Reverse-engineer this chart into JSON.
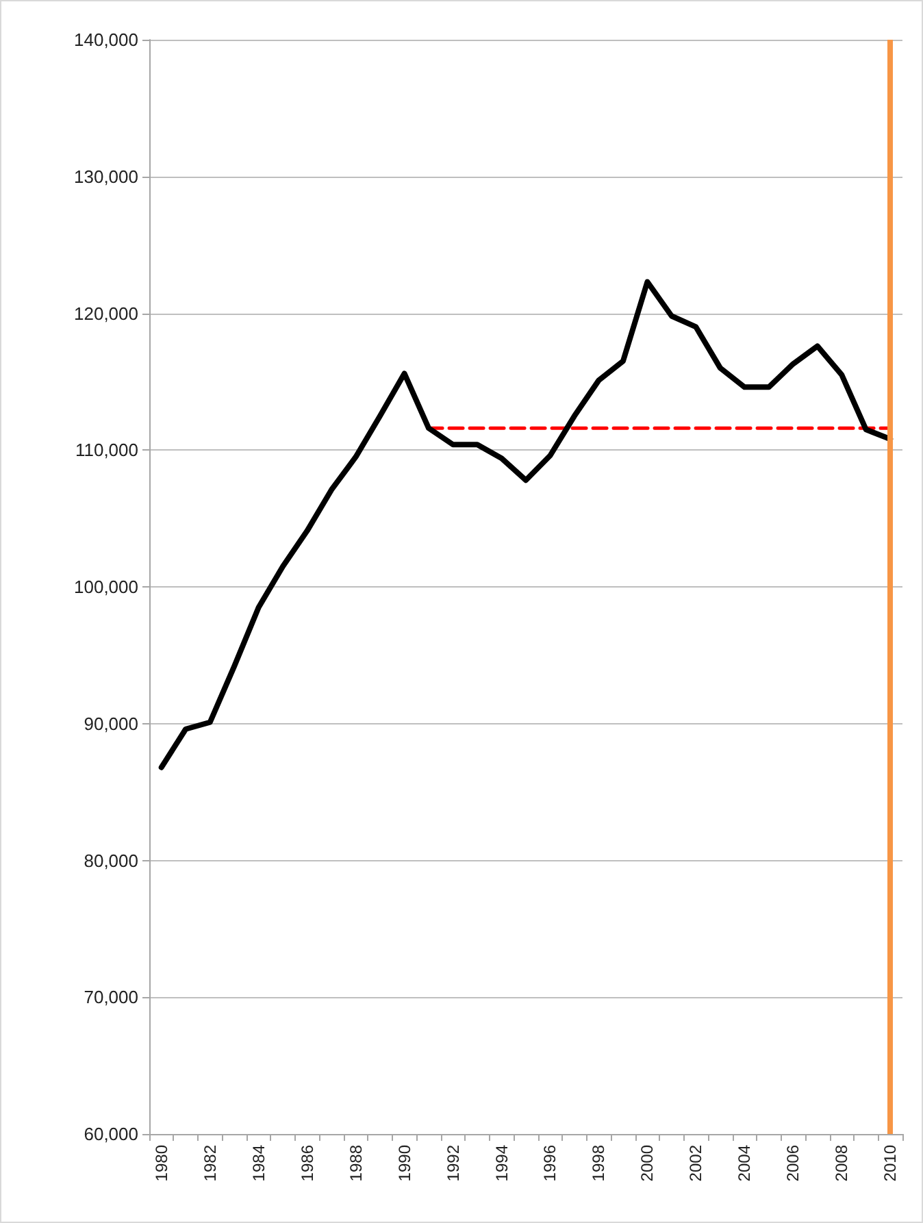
{
  "chart_data": {
    "type": "line",
    "categories": [
      "1980",
      null,
      "1982",
      null,
      "1984",
      null,
      "1986",
      null,
      "1988",
      null,
      "1990",
      null,
      "1992",
      null,
      "1994",
      null,
      "1996",
      null,
      "1998",
      null,
      "2000",
      null,
      "2002",
      null,
      "2004",
      null,
      "2006",
      null,
      "2008",
      null,
      "2010"
    ],
    "series": [
      {
        "color": "#000000",
        "line_style": "solid",
        "values": [
          86800,
          89600,
          90100,
          94200,
          98500,
          101500,
          104100,
          107100,
          109500,
          112500,
          115600,
          111600,
          110400,
          110400,
          109400,
          107800,
          109600,
          112500,
          115100,
          116500,
          122300,
          119800,
          119000,
          116000,
          114600,
          114600,
          116300,
          117600,
          115500,
          111500,
          110800
        ]
      },
      {
        "color": "#ff0000",
        "line_style": "dashed",
        "values": [
          null,
          null,
          null,
          null,
          null,
          null,
          null,
          null,
          null,
          null,
          null,
          111600,
          111600,
          111600,
          111600,
          111600,
          111600,
          111600,
          111600,
          111600,
          111600,
          111600,
          111600,
          111600,
          111600,
          111600,
          111600,
          111600,
          111600,
          111600,
          111600
        ]
      }
    ],
    "ylim": [
      60000,
      140000
    ],
    "yticks": [
      {
        "value": 60000,
        "label": "60,000"
      },
      {
        "value": 70000,
        "label": "70,000"
      },
      {
        "value": 80000,
        "label": "80,000"
      },
      {
        "value": 90000,
        "label": "90,000"
      },
      {
        "value": 100000,
        "label": "100,000"
      },
      {
        "value": 110000,
        "label": "110,000"
      },
      {
        "value": 120000,
        "label": "120,000"
      },
      {
        "value": 130000,
        "label": "130,000"
      },
      {
        "value": 140000,
        "label": "140,000"
      }
    ],
    "ref_lines": [
      {
        "axis": "x",
        "value": "2010",
        "color": "#f79646"
      }
    ],
    "grid": "y",
    "marker": "none"
  }
}
